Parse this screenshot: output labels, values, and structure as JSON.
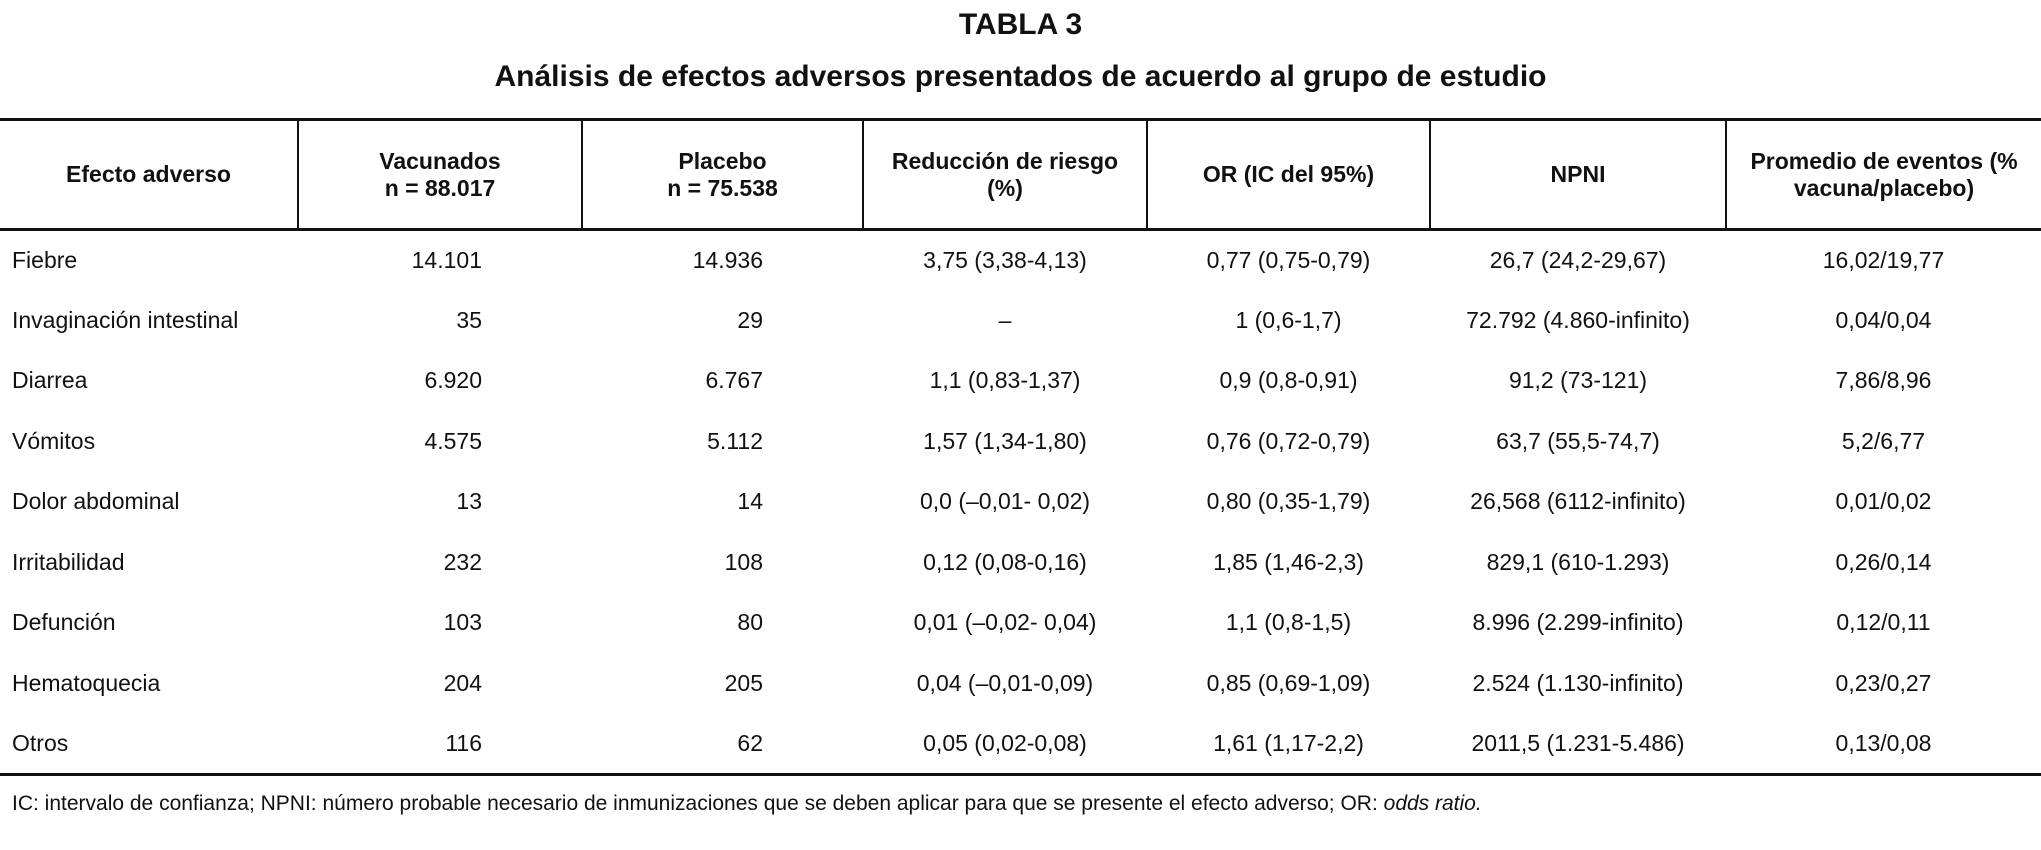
{
  "header": {
    "title": "TABLA 3",
    "subtitle": "Análisis de efectos adversos presentados de acuerdo al grupo de estudio"
  },
  "table": {
    "columns": [
      [
        "Efecto adverso"
      ],
      [
        "Vacunados",
        "n = 88.017"
      ],
      [
        "Placebo",
        "n = 75.538"
      ],
      [
        "Reducción de riesgo",
        "(%)"
      ],
      [
        "OR (IC del 95%)"
      ],
      [
        "NPNI"
      ],
      [
        "Promedio de eventos (%",
        "vacuna/placebo)"
      ]
    ],
    "rows": [
      [
        "Fiebre",
        "14.101",
        "14.936",
        "3,75 (3,38-4,13)",
        "0,77 (0,75-0,79)",
        "26,7 (24,2-29,67)",
        "16,02/19,77"
      ],
      [
        "Invaginación intestinal",
        "35",
        "29",
        "–",
        "1 (0,6-1,7)",
        "72.792 (4.860-infinito)",
        "0,04/0,04"
      ],
      [
        "Diarrea",
        "6.920",
        "6.767",
        "1,1 (0,83-1,37)",
        "0,9 (0,8-0,91)",
        "91,2 (73-121)",
        "7,86/8,96"
      ],
      [
        "Vómitos",
        "4.575",
        "5.112",
        "1,57 (1,34-1,80)",
        "0,76 (0,72-0,79)",
        "63,7 (55,5-74,7)",
        "5,2/6,77"
      ],
      [
        "Dolor abdominal",
        "13",
        "14",
        "0,0 (–0,01- 0,02)",
        "0,80 (0,35-1,79)",
        "26,568 (6112-infinito)",
        "0,01/0,02"
      ],
      [
        "Irritabilidad",
        "232",
        "108",
        "0,12 (0,08-0,16)",
        "1,85 (1,46-2,3)",
        "829,1 (610-1.293)",
        "0,26/0,14"
      ],
      [
        "Defunción",
        "103",
        "80",
        "0,01 (–0,02- 0,04)",
        "1,1 (0,8-1,5)",
        "8.996 (2.299-infinito)",
        "0,12/0,11"
      ],
      [
        "Hematoquecia",
        "204",
        "205",
        "0,04 (–0,01-0,09)",
        "0,85 (0,69-1,09)",
        "2.524 (1.130-infinito)",
        "0,23/0,27"
      ],
      [
        "Otros",
        "116",
        "62",
        "0,05 (0,02-0,08)",
        "1,61 (1,17-2,2)",
        "2011,5 (1.231-5.486)",
        "0,13/0,08"
      ]
    ]
  },
  "footnote": {
    "text": "IC: intervalo de confianza; NPNI: número probable necesario de inmunizaciones que se deben aplicar para que se presente el efecto adverso; OR: ",
    "italic": "odds ratio."
  }
}
